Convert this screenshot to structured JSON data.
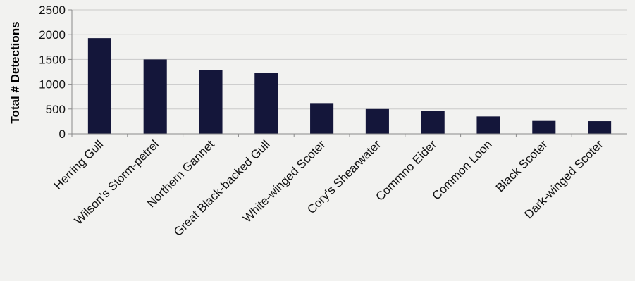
{
  "colors": {
    "bar": "#14163a",
    "grid": "#c9c9c9",
    "axis": "#8a8a8a",
    "text": "#111111",
    "background": "#f2f2f0"
  },
  "chart_data": {
    "type": "bar",
    "title": "",
    "xlabel": "",
    "ylabel": "Total # Detections",
    "ylim": [
      0,
      2500
    ],
    "yticks": [
      0,
      500,
      1000,
      1500,
      2000,
      2500
    ],
    "grid": true,
    "legend": "none",
    "categories": [
      "Herring Gull",
      "Wilson's Storm-petrel",
      "Northern Gannet",
      "Great Black-backed Gull",
      "White-winged Scoter",
      "Cory's Shearwater",
      "Commno Eider",
      "Common Loon",
      "Black Scoter",
      "Dark-winged Scoter"
    ],
    "series": [
      {
        "values": [
          1930,
          1500,
          1280,
          1230,
          620,
          500,
          460,
          350,
          260,
          255
        ]
      }
    ]
  }
}
